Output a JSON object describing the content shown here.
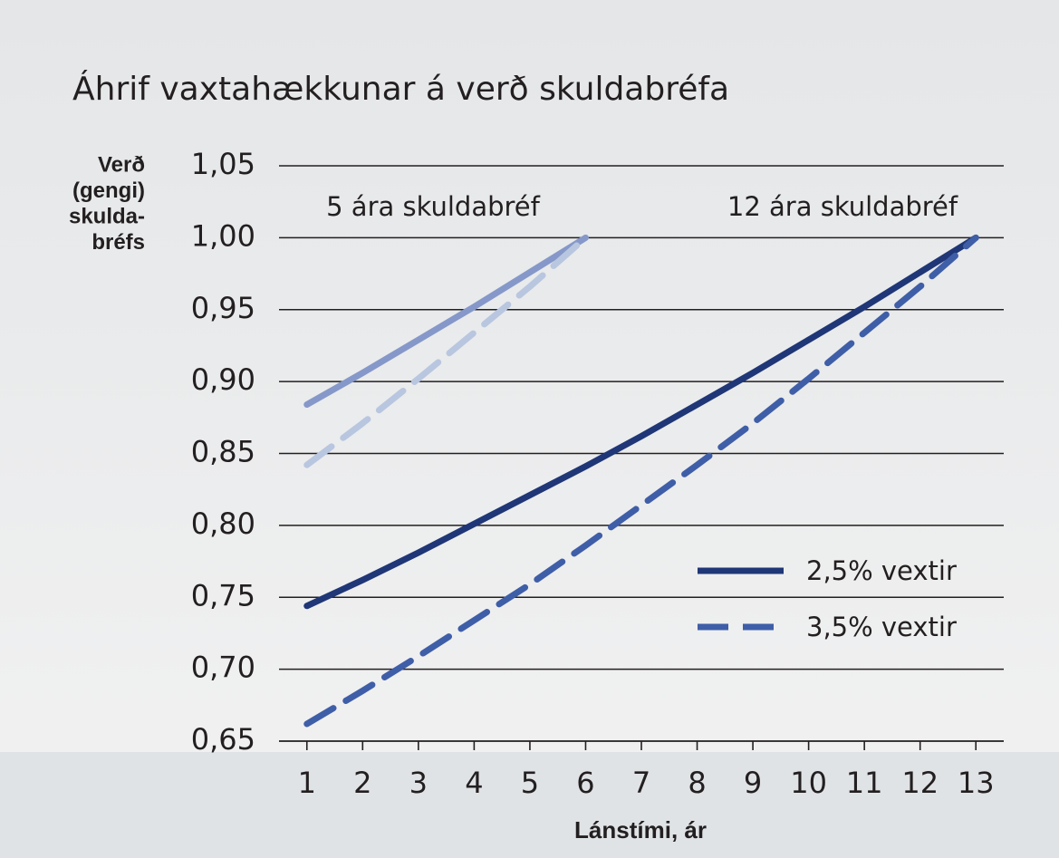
{
  "chart_data": {
    "type": "line",
    "title": "Áhrif vaxtahækkunar á verð skuldabréfa",
    "ylabel": [
      "Verð",
      "(gengi)",
      "skulda-",
      "bréfs"
    ],
    "xlabel": "Lánstími, ár",
    "annotations": [
      "5 ára skuldabréf",
      "12 ára skuldabréf"
    ],
    "x": [
      1,
      2,
      3,
      4,
      5,
      6,
      7,
      8,
      9,
      10,
      11,
      12,
      13
    ],
    "xlim": [
      0.5,
      13.5
    ],
    "xticks": [
      1,
      2,
      3,
      4,
      5,
      6,
      7,
      8,
      9,
      10,
      11,
      12,
      13
    ],
    "ylim": [
      0.65,
      1.05
    ],
    "yticks": [
      {
        "value": 0.65,
        "label": "0,65"
      },
      {
        "value": 0.7,
        "label": "0,70"
      },
      {
        "value": 0.75,
        "label": "0,75"
      },
      {
        "value": 0.8,
        "label": "0,80"
      },
      {
        "value": 0.85,
        "label": "0,85"
      },
      {
        "value": 0.9,
        "label": "0,90"
      },
      {
        "value": 0.95,
        "label": "0,95"
      },
      {
        "value": 1.0,
        "label": "1,00"
      },
      {
        "value": 1.05,
        "label": "1,05"
      }
    ],
    "grid": true,
    "legend": "lower right",
    "series": [
      {
        "color": "#8598c9",
        "dashed": false,
        "values": [
          0.884,
          0.906,
          0.929,
          0.952,
          0.976,
          1.0,
          null,
          null,
          null,
          null,
          null,
          null,
          null
        ]
      },
      {
        "color": "#b9c6e0",
        "dashed": true,
        "values": [
          0.842,
          0.871,
          0.902,
          0.934,
          0.966,
          1.0,
          null,
          null,
          null,
          null,
          null,
          null,
          null
        ]
      },
      {
        "name": "2,5% vextir",
        "color": "#1f3677",
        "dashed": false,
        "values": [
          0.744,
          0.762,
          0.781,
          0.801,
          0.821,
          0.841,
          0.862,
          0.884,
          0.906,
          0.929,
          0.952,
          0.976,
          1.0
        ]
      },
      {
        "name": "3,5% vextir",
        "color": "#3f5ea8",
        "dashed": true,
        "values": [
          0.662,
          0.685,
          0.709,
          0.734,
          0.759,
          0.786,
          0.814,
          0.842,
          0.871,
          0.902,
          0.934,
          0.966,
          1.0
        ]
      }
    ]
  }
}
